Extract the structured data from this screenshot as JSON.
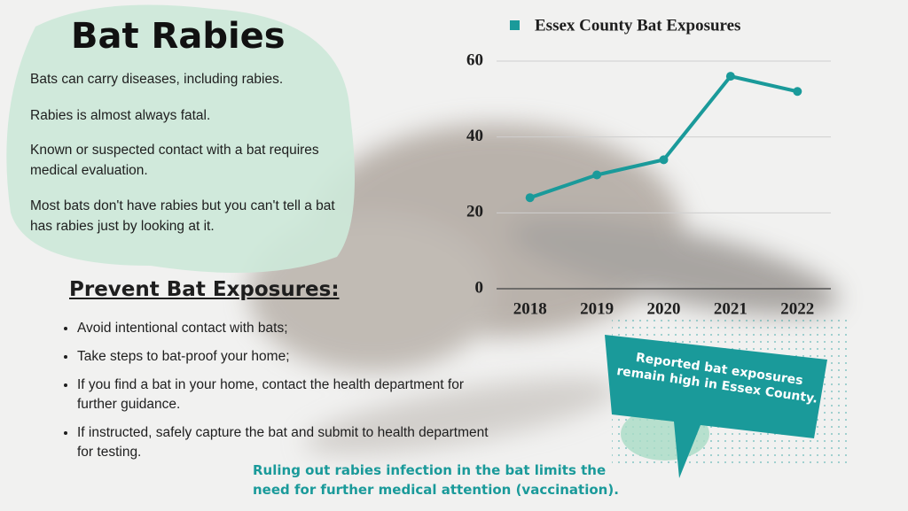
{
  "chart_data": {
    "type": "line",
    "categories": [
      "2018",
      "2019",
      "2020",
      "2021",
      "2022"
    ],
    "series": [
      {
        "name": "Essex County Bat Exposures",
        "color": "#1a9a9a",
        "values": [
          24,
          30,
          34,
          56,
          52
        ]
      }
    ],
    "ylim": [
      0,
      60
    ],
    "yticks": [
      0,
      20,
      40,
      60
    ],
    "grid": true,
    "legend": "top"
  },
  "title": "Bat Rabies",
  "intro": [
    "Bats can carry diseases, including rabies.",
    "Rabies is almost always fatal.",
    "Known or suspected contact with a bat requires medical evaluation.",
    "Most bats don't have rabies but you can't tell a bat has rabies just by looking at it."
  ],
  "prevent": {
    "heading": "Prevent Bat Exposures:",
    "items": [
      "Avoid intentional contact with bats;",
      "Take steps to bat-proof your home;",
      "If you find a bat in your home, contact the health department for further guidance.",
      "If instructed, safely capture the bat and submit to health department for testing."
    ]
  },
  "note": "Ruling out rabies infection in the bat limits the need for further medical attention (vaccination).",
  "callout": "Reported bat exposures remain high in Essex County."
}
